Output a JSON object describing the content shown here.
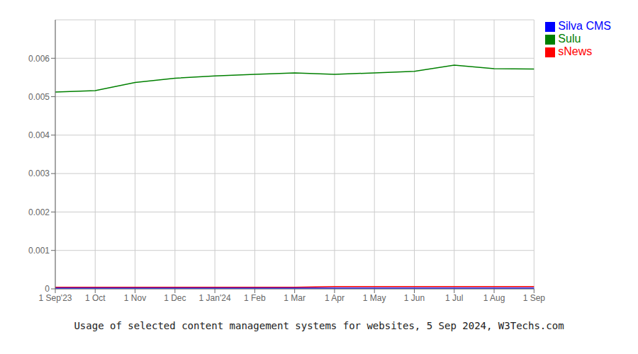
{
  "chart_data": {
    "type": "line",
    "title": "Usage of selected content management systems for websites, 5 Sep 2024, W3Techs.com",
    "categories": [
      "1 Sep'23",
      "1 Oct",
      "1 Nov",
      "1 Dec",
      "1 Jan'24",
      "1 Feb",
      "1 Mar",
      "1 Apr",
      "1 May",
      "1 Jun",
      "1 Jul",
      "1 Aug",
      "1 Sep"
    ],
    "series": [
      {
        "name": "Sulu",
        "color": "#008000",
        "values": [
          0.00512,
          0.00516,
          0.00537,
          0.00548,
          0.00554,
          0.00558,
          0.00562,
          0.00558,
          0.00562,
          0.00566,
          0.00582,
          0.00573,
          0.00572
        ]
      },
      {
        "name": "sNews",
        "color": "#ff0000",
        "values": [
          4e-05,
          4e-05,
          4e-05,
          4e-05,
          4e-05,
          4e-05,
          4e-05,
          6e-05,
          6e-05,
          6e-05,
          6e-05,
          6e-05,
          6e-05
        ]
      },
      {
        "name": "Silva CMS",
        "color": "#0000ff",
        "values": [
          2e-05,
          2e-05,
          2e-05,
          2e-05,
          2e-05,
          2e-05,
          2e-05,
          2e-05,
          2e-05,
          2e-05,
          2e-05,
          2e-05,
          2e-05
        ]
      }
    ],
    "ylim": [
      0,
      0.007
    ],
    "yticks": [
      0,
      0.001,
      0.002,
      0.003,
      0.004,
      0.005,
      0.006
    ],
    "grid": true,
    "legend": "right"
  }
}
